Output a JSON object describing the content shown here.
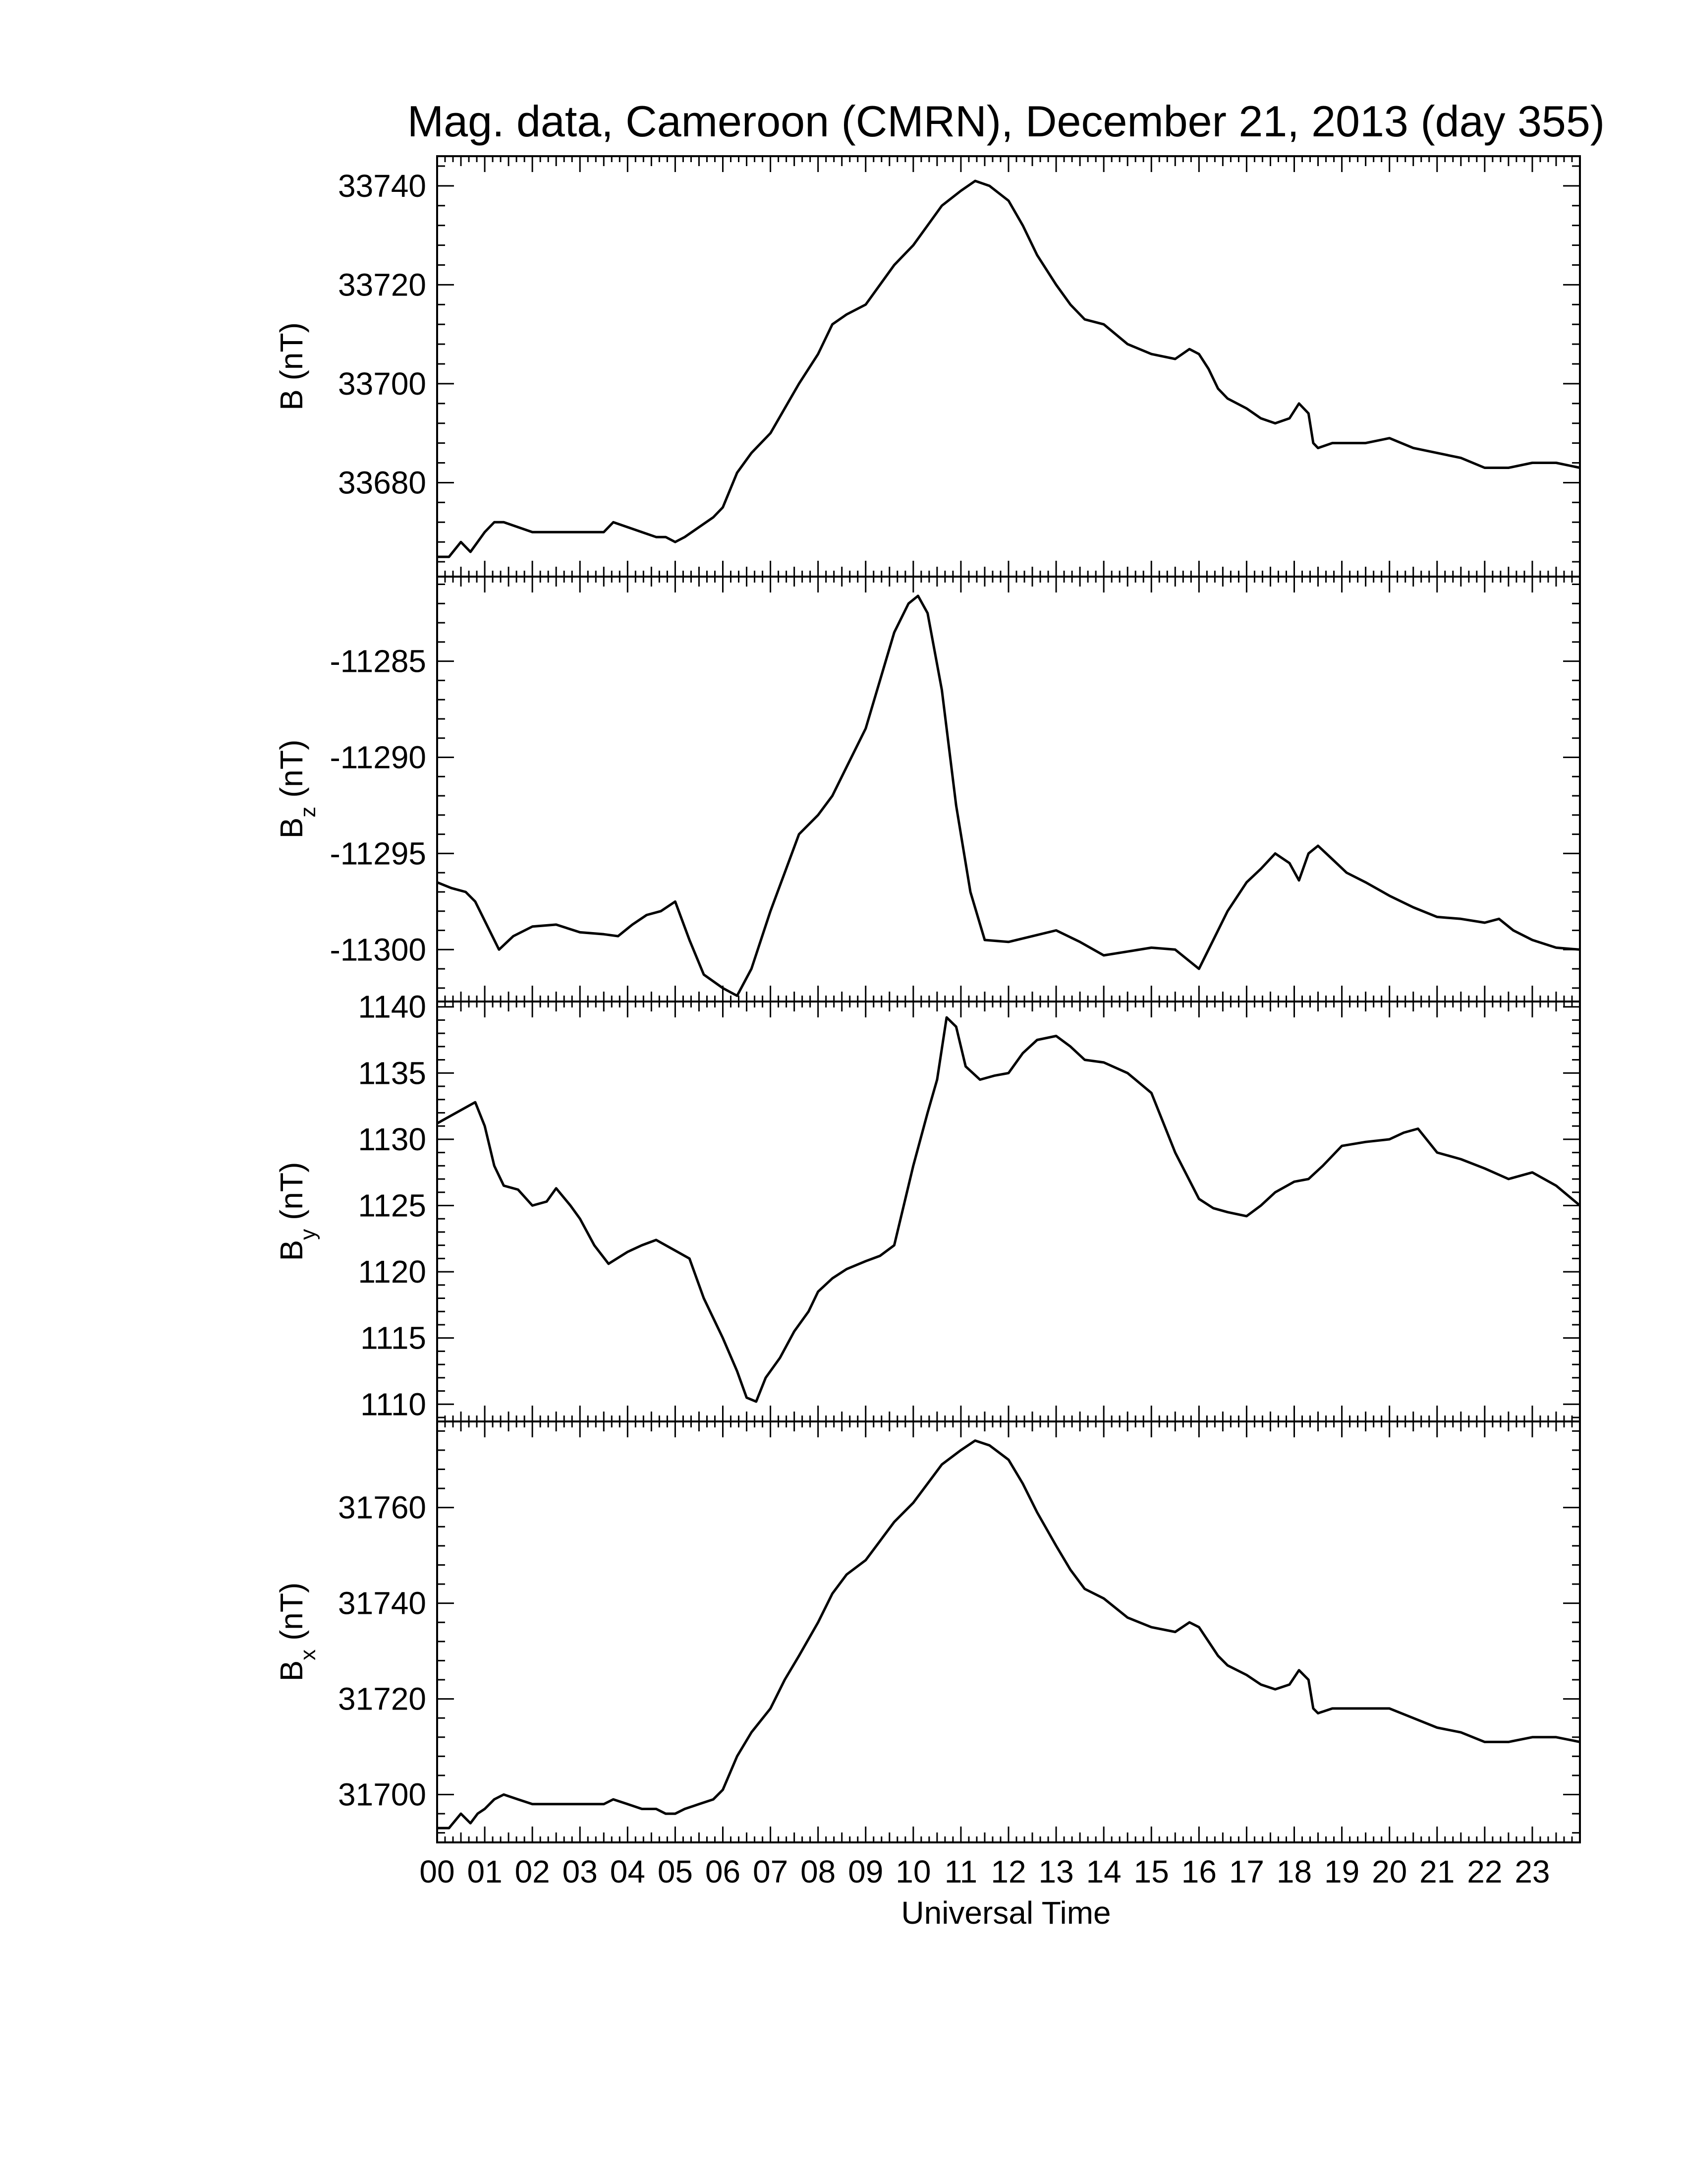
{
  "chart_data": {
    "type": "line",
    "title": "Mag. data, Cameroon (CMRN), December 21, 2013 (day 355)",
    "xlabel": "Universal Time",
    "xlim": [
      0,
      24
    ],
    "x_tick_labels": [
      "00",
      "01",
      "02",
      "03",
      "04",
      "05",
      "06",
      "07",
      "08",
      "09",
      "10",
      "11",
      "12",
      "13",
      "14",
      "15",
      "16",
      "17",
      "18",
      "19",
      "20",
      "21",
      "22",
      "23"
    ],
    "line_color": "#000000",
    "grid": false,
    "panels": [
      {
        "name": "B",
        "ylabel": "B (nT)",
        "ylabel_main": "B",
        "ylabel_sub": "",
        "ylabel_unit": " (nT)",
        "ylim": [
          33661,
          33746
        ],
        "yticks": [
          33680,
          33700,
          33720,
          33740
        ],
        "ytick_labels": [
          "33680",
          "33700",
          "33720",
          "33740"
        ],
        "x": [
          0.0,
          0.25,
          0.5,
          0.7,
          0.85,
          1.0,
          1.2,
          1.4,
          1.7,
          2.0,
          2.5,
          3.0,
          3.5,
          3.7,
          4.0,
          4.3,
          4.6,
          4.8,
          5.0,
          5.2,
          5.5,
          5.8,
          6.0,
          6.3,
          6.6,
          7.0,
          7.3,
          7.6,
          8.0,
          8.3,
          8.6,
          9.0,
          9.3,
          9.6,
          10.0,
          10.3,
          10.6,
          11.0,
          11.3,
          11.6,
          12.0,
          12.3,
          12.6,
          13.0,
          13.3,
          13.6,
          14.0,
          14.5,
          15.0,
          15.5,
          15.8,
          16.0,
          16.2,
          16.4,
          16.6,
          17.0,
          17.3,
          17.6,
          17.9,
          18.1,
          18.3,
          18.4,
          18.5,
          18.8,
          19.0,
          19.5,
          20.0,
          20.5,
          21.0,
          21.5,
          22.0,
          22.5,
          23.0,
          23.5,
          24.0
        ],
        "values": [
          33665,
          33665,
          33668,
          33666,
          33668,
          33670,
          33672,
          33672,
          33671,
          33670,
          33670,
          33670,
          33670,
          33672,
          33671,
          33670,
          33669,
          33669,
          33668,
          33669,
          33671,
          33673,
          33675,
          33682,
          33686,
          33690,
          33695,
          33700,
          33706,
          33712,
          33714,
          33716,
          33720,
          33724,
          33728,
          33732,
          33736,
          33739,
          33741,
          33740,
          33737,
          33732,
          33726,
          33720,
          33716,
          33713,
          33712,
          33708,
          33706,
          33705,
          33707,
          33706,
          33703,
          33699,
          33697,
          33695,
          33693,
          33692,
          33693,
          33696,
          33694,
          33688,
          33687,
          33688,
          33688,
          33688,
          33689,
          33687,
          33686,
          33685,
          33683,
          33683,
          33684,
          33684,
          33683
        ]
      },
      {
        "name": "Bz",
        "ylabel": "Bz (nT)",
        "ylabel_main": "B",
        "ylabel_sub": "z",
        "ylabel_unit": " (nT)",
        "ylim": [
          -11302.7,
          -11280.6
        ],
        "yticks": [
          -11300,
          -11295,
          -11290,
          -11285
        ],
        "ytick_labels": [
          "-11300",
          "-11295",
          "-11290",
          "-11285"
        ],
        "x": [
          0.0,
          0.3,
          0.6,
          0.8,
          1.0,
          1.3,
          1.6,
          2.0,
          2.5,
          3.0,
          3.5,
          3.8,
          4.1,
          4.4,
          4.7,
          5.0,
          5.3,
          5.6,
          6.0,
          6.3,
          6.6,
          7.0,
          7.3,
          7.6,
          8.0,
          8.3,
          8.6,
          9.0,
          9.3,
          9.6,
          9.9,
          10.1,
          10.3,
          10.6,
          10.9,
          11.2,
          11.5,
          12.0,
          12.5,
          13.0,
          13.5,
          14.0,
          14.5,
          15.0,
          15.5,
          16.0,
          16.3,
          16.6,
          17.0,
          17.3,
          17.6,
          17.9,
          18.1,
          18.3,
          18.5,
          18.8,
          19.1,
          19.5,
          20.0,
          20.5,
          21.0,
          21.5,
          22.0,
          22.3,
          22.6,
          23.0,
          23.5,
          24.0
        ],
        "values": [
          -11296.5,
          -11296.8,
          -11297.0,
          -11297.5,
          -11298.5,
          -11300.0,
          -11299.3,
          -11298.8,
          -11298.7,
          -11299.1,
          -11299.2,
          -11299.3,
          -11298.7,
          -11298.2,
          -11298.0,
          -11297.5,
          -11299.5,
          -11301.3,
          -11302.0,
          -11302.4,
          -11301.0,
          -11298.0,
          -11296.0,
          -11294.0,
          -11293.0,
          -11292.0,
          -11290.5,
          -11288.5,
          -11286.0,
          -11283.5,
          -11282.0,
          -11281.6,
          -11282.5,
          -11286.5,
          -11292.5,
          -11297.0,
          -11299.5,
          -11299.6,
          -11299.3,
          -11299.0,
          -11299.6,
          -11300.3,
          -11300.1,
          -11299.9,
          -11300.0,
          -11301.0,
          -11299.5,
          -11298.0,
          -11296.5,
          -11295.8,
          -11295.0,
          -11295.5,
          -11296.4,
          -11295.0,
          -11294.6,
          -11295.3,
          -11296.0,
          -11296.5,
          -11297.2,
          -11297.8,
          -11298.3,
          -11298.4,
          -11298.6,
          -11298.4,
          -11299.0,
          -11299.5,
          -11299.9,
          -11300.0
        ]
      },
      {
        "name": "By",
        "ylabel": "By (nT)",
        "ylabel_main": "B",
        "ylabel_sub": "y",
        "ylabel_unit": " (nT)",
        "ylim": [
          1108.7,
          1140.4
        ],
        "yticks": [
          1110,
          1115,
          1120,
          1125,
          1130,
          1135,
          1140
        ],
        "ytick_labels": [
          "1110",
          "1115",
          "1120",
          "1125",
          "1130",
          "1135",
          "1140"
        ],
        "x": [
          0.0,
          0.4,
          0.8,
          1.0,
          1.2,
          1.4,
          1.7,
          2.0,
          2.3,
          2.5,
          2.8,
          3.0,
          3.3,
          3.6,
          4.0,
          4.3,
          4.6,
          5.0,
          5.3,
          5.6,
          6.0,
          6.3,
          6.5,
          6.7,
          6.9,
          7.2,
          7.5,
          7.8,
          8.0,
          8.3,
          8.6,
          9.0,
          9.3,
          9.6,
          10.0,
          10.3,
          10.5,
          10.7,
          10.9,
          11.1,
          11.4,
          11.7,
          12.0,
          12.3,
          12.6,
          13.0,
          13.3,
          13.6,
          14.0,
          14.5,
          15.0,
          15.5,
          16.0,
          16.3,
          16.6,
          17.0,
          17.3,
          17.6,
          18.0,
          18.3,
          18.6,
          19.0,
          19.5,
          20.0,
          20.3,
          20.6,
          21.0,
          21.5,
          22.0,
          22.5,
          23.0,
          23.5,
          24.0
        ],
        "values": [
          1131.2,
          1132.0,
          1132.8,
          1131.0,
          1128.0,
          1126.5,
          1126.2,
          1125.0,
          1125.3,
          1126.3,
          1125.0,
          1124.0,
          1122.0,
          1120.6,
          1121.5,
          1122.0,
          1122.4,
          1121.6,
          1121.0,
          1118.0,
          1115.0,
          1112.5,
          1110.5,
          1110.2,
          1112.0,
          1113.5,
          1115.5,
          1117.0,
          1118.5,
          1119.5,
          1120.2,
          1120.8,
          1121.2,
          1122.0,
          1128.0,
          1132.0,
          1134.5,
          1139.2,
          1138.5,
          1135.5,
          1134.5,
          1134.8,
          1135.0,
          1136.5,
          1137.5,
          1137.8,
          1137.0,
          1136.0,
          1135.8,
          1135.0,
          1133.5,
          1129.0,
          1125.5,
          1124.8,
          1124.5,
          1124.2,
          1125.0,
          1126.0,
          1126.8,
          1127.0,
          1128.0,
          1129.5,
          1129.8,
          1130.0,
          1130.5,
          1130.8,
          1129.0,
          1128.5,
          1127.8,
          1127.0,
          1127.5,
          1126.5,
          1125.0
        ]
      },
      {
        "name": "Bx",
        "ylabel": "Bx (nT)",
        "ylabel_main": "B",
        "ylabel_sub": "x",
        "ylabel_unit": " (nT)",
        "ylim": [
          31690,
          31778
        ],
        "yticks": [
          31700,
          31720,
          31740,
          31760
        ],
        "ytick_labels": [
          "31700",
          "31720",
          "31740",
          "31760"
        ],
        "x": [
          0.0,
          0.25,
          0.5,
          0.7,
          0.85,
          1.0,
          1.2,
          1.4,
          1.7,
          2.0,
          2.5,
          3.0,
          3.5,
          3.7,
          4.0,
          4.3,
          4.6,
          4.8,
          5.0,
          5.2,
          5.5,
          5.8,
          6.0,
          6.3,
          6.6,
          7.0,
          7.3,
          7.6,
          8.0,
          8.3,
          8.6,
          9.0,
          9.3,
          9.6,
          10.0,
          10.3,
          10.6,
          11.0,
          11.3,
          11.6,
          12.0,
          12.3,
          12.6,
          13.0,
          13.3,
          13.6,
          14.0,
          14.5,
          15.0,
          15.5,
          15.8,
          16.0,
          16.2,
          16.4,
          16.6,
          17.0,
          17.3,
          17.6,
          17.9,
          18.1,
          18.3,
          18.4,
          18.5,
          18.8,
          19.0,
          19.5,
          20.0,
          20.5,
          21.0,
          21.5,
          22.0,
          22.5,
          23.0,
          23.5,
          24.0
        ],
        "values": [
          31693,
          31693,
          31696,
          31694,
          31696,
          31697,
          31699,
          31700,
          31699,
          31698,
          31698,
          31698,
          31698,
          31699,
          31698,
          31697,
          31697,
          31696,
          31696,
          31697,
          31698,
          31699,
          31701,
          31708,
          31713,
          31718,
          31724,
          31729,
          31736,
          31742,
          31746,
          31749,
          31753,
          31757,
          31761,
          31765,
          31769,
          31772,
          31774,
          31773,
          31770,
          31765,
          31759,
          31752,
          31747,
          31743,
          31741,
          31737,
          31735,
          31734,
          31736,
          31735,
          31732,
          31729,
          31727,
          31725,
          31723,
          31722,
          31723,
          31726,
          31724,
          31718,
          31717,
          31718,
          31718,
          31718,
          31718,
          31716,
          31714,
          31713,
          31711,
          31711,
          31712,
          31712,
          31711
        ]
      }
    ]
  }
}
